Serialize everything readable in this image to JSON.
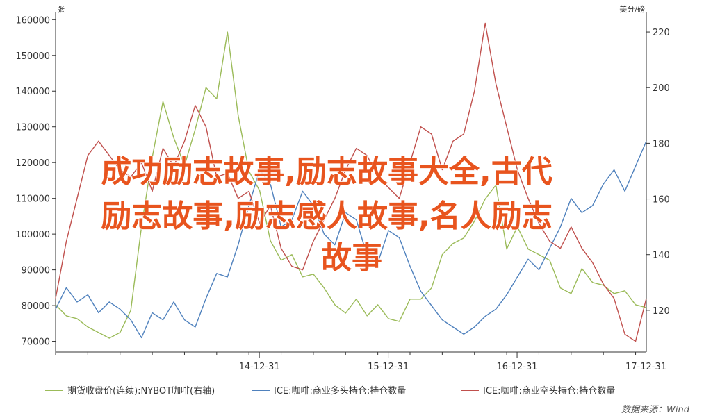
{
  "chart_data": {
    "type": "line",
    "left_axis": {
      "unit": "张",
      "ylim": [
        67000,
        162000
      ],
      "ticks": [
        70000,
        80000,
        90000,
        100000,
        110000,
        120000,
        130000,
        140000,
        150000,
        160000
      ]
    },
    "right_axis": {
      "unit": "美分/磅",
      "ylim": [
        105,
        227
      ],
      "ticks": [
        120,
        140,
        160,
        180,
        200,
        220
      ]
    },
    "x_ticks": [
      "14-12-31",
      "15-12-31",
      "16-12-31",
      "17-12-31"
    ],
    "x_range": [
      "2013-06",
      "2018-01"
    ],
    "grid": false,
    "legend_position": "bottom",
    "series": [
      {
        "name": "期货收盘价(连续):NYBOT咖啡(右轴)",
        "axis": "right",
        "color": "#9bbb59",
        "points": [
          [
            "2013-06",
            122
          ],
          [
            "2013-07",
            118
          ],
          [
            "2013-08",
            117
          ],
          [
            "2013-09",
            114
          ],
          [
            "2013-10",
            112
          ],
          [
            "2013-11",
            110
          ],
          [
            "2013-12",
            112
          ],
          [
            "2014-01",
            120
          ],
          [
            "2014-02",
            150
          ],
          [
            "2014-03",
            175
          ],
          [
            "2014-04",
            195
          ],
          [
            "2014-05",
            182
          ],
          [
            "2014-06",
            172
          ],
          [
            "2014-07",
            185
          ],
          [
            "2014-08",
            200
          ],
          [
            "2014-09",
            196
          ],
          [
            "2014-10",
            220
          ],
          [
            "2014-11",
            190
          ],
          [
            "2014-12",
            170
          ],
          [
            "2015-01",
            163
          ],
          [
            "2015-02",
            145
          ],
          [
            "2015-03",
            138
          ],
          [
            "2015-04",
            140
          ],
          [
            "2015-05",
            132
          ],
          [
            "2015-06",
            133
          ],
          [
            "2015-07",
            128
          ],
          [
            "2015-08",
            122
          ],
          [
            "2015-09",
            119
          ],
          [
            "2015-10",
            124
          ],
          [
            "2015-11",
            118
          ],
          [
            "2015-12",
            122
          ],
          [
            "2016-01",
            117
          ],
          [
            "2016-02",
            116
          ],
          [
            "2016-03",
            124
          ],
          [
            "2016-04",
            124
          ],
          [
            "2016-05",
            128
          ],
          [
            "2016-06",
            140
          ],
          [
            "2016-07",
            144
          ],
          [
            "2016-08",
            146
          ],
          [
            "2016-09",
            152
          ],
          [
            "2016-10",
            160
          ],
          [
            "2016-11",
            165
          ],
          [
            "2016-12",
            142
          ],
          [
            "2017-01",
            150
          ],
          [
            "2017-02",
            142
          ],
          [
            "2017-03",
            140
          ],
          [
            "2017-04",
            138
          ],
          [
            "2017-05",
            128
          ],
          [
            "2017-06",
            126
          ],
          [
            "2017-07",
            135
          ],
          [
            "2017-08",
            130
          ],
          [
            "2017-09",
            129
          ],
          [
            "2017-10",
            126
          ],
          [
            "2017-11",
            127
          ],
          [
            "2017-12",
            122
          ],
          [
            "2018-01",
            121
          ]
        ]
      },
      {
        "name": "ICE:咖啡:商业多头持仓:持仓数量",
        "axis": "left",
        "color": "#4f81bd",
        "points": [
          [
            "2013-06",
            79000
          ],
          [
            "2013-07",
            85000
          ],
          [
            "2013-08",
            81000
          ],
          [
            "2013-09",
            83000
          ],
          [
            "2013-10",
            78000
          ],
          [
            "2013-11",
            81000
          ],
          [
            "2013-12",
            79000
          ],
          [
            "2014-01",
            76000
          ],
          [
            "2014-02",
            71000
          ],
          [
            "2014-03",
            78000
          ],
          [
            "2014-04",
            76000
          ],
          [
            "2014-05",
            81000
          ],
          [
            "2014-06",
            76000
          ],
          [
            "2014-07",
            74000
          ],
          [
            "2014-08",
            82000
          ],
          [
            "2014-09",
            89000
          ],
          [
            "2014-10",
            88000
          ],
          [
            "2014-11",
            97000
          ],
          [
            "2014-12",
            108000
          ],
          [
            "2015-01",
            118000
          ],
          [
            "2015-02",
            114000
          ],
          [
            "2015-03",
            102000
          ],
          [
            "2015-04",
            104000
          ],
          [
            "2015-05",
            112000
          ],
          [
            "2015-06",
            108000
          ],
          [
            "2015-07",
            100000
          ],
          [
            "2015-08",
            97000
          ],
          [
            "2015-09",
            106000
          ],
          [
            "2015-10",
            104000
          ],
          [
            "2015-11",
            94000
          ],
          [
            "2015-12",
            92000
          ],
          [
            "2016-01",
            101000
          ],
          [
            "2016-02",
            99000
          ],
          [
            "2016-03",
            91000
          ],
          [
            "2016-04",
            84000
          ],
          [
            "2016-05",
            80000
          ],
          [
            "2016-06",
            76000
          ],
          [
            "2016-07",
            74000
          ],
          [
            "2016-08",
            72000
          ],
          [
            "2016-09",
            74000
          ],
          [
            "2016-10",
            77000
          ],
          [
            "2016-11",
            79000
          ],
          [
            "2016-12",
            83000
          ],
          [
            "2017-01",
            88000
          ],
          [
            "2017-02",
            93000
          ],
          [
            "2017-03",
            90000
          ],
          [
            "2017-04",
            96000
          ],
          [
            "2017-05",
            102000
          ],
          [
            "2017-06",
            110000
          ],
          [
            "2017-07",
            106000
          ],
          [
            "2017-08",
            108000
          ],
          [
            "2017-09",
            114000
          ],
          [
            "2017-10",
            118000
          ],
          [
            "2017-11",
            112000
          ],
          [
            "2017-12",
            119000
          ],
          [
            "2018-01",
            126000
          ]
        ]
      },
      {
        "name": "ICE:咖啡:商业空头持仓:持仓数量",
        "axis": "left",
        "color": "#c0504d",
        "points": [
          [
            "2013-06",
            82000
          ],
          [
            "2013-07",
            98000
          ],
          [
            "2013-08",
            110000
          ],
          [
            "2013-09",
            122000
          ],
          [
            "2013-10",
            126000
          ],
          [
            "2013-11",
            122000
          ],
          [
            "2013-12",
            118000
          ],
          [
            "2014-01",
            116000
          ],
          [
            "2014-02",
            120000
          ],
          [
            "2014-03",
            112000
          ],
          [
            "2014-04",
            124000
          ],
          [
            "2014-05",
            119000
          ],
          [
            "2014-06",
            126000
          ],
          [
            "2014-07",
            136000
          ],
          [
            "2014-08",
            130000
          ],
          [
            "2014-09",
            116000
          ],
          [
            "2014-10",
            117000
          ],
          [
            "2014-11",
            110000
          ],
          [
            "2014-12",
            112000
          ],
          [
            "2015-01",
            103000
          ],
          [
            "2015-02",
            108000
          ],
          [
            "2015-03",
            96000
          ],
          [
            "2015-04",
            91000
          ],
          [
            "2015-05",
            90000
          ],
          [
            "2015-06",
            98000
          ],
          [
            "2015-07",
            104000
          ],
          [
            "2015-08",
            110000
          ],
          [
            "2015-09",
            118000
          ],
          [
            "2015-10",
            124000
          ],
          [
            "2015-11",
            122000
          ],
          [
            "2015-12",
            116000
          ],
          [
            "2016-01",
            113000
          ],
          [
            "2016-02",
            110000
          ],
          [
            "2016-03",
            120000
          ],
          [
            "2016-04",
            130000
          ],
          [
            "2016-05",
            128000
          ],
          [
            "2016-06",
            118000
          ],
          [
            "2016-07",
            126000
          ],
          [
            "2016-08",
            128000
          ],
          [
            "2016-09",
            140000
          ],
          [
            "2016-10",
            159000
          ],
          [
            "2016-11",
            142000
          ],
          [
            "2016-12",
            130000
          ],
          [
            "2017-01",
            118000
          ],
          [
            "2017-02",
            110000
          ],
          [
            "2017-03",
            103000
          ],
          [
            "2017-04",
            98000
          ],
          [
            "2017-05",
            96000
          ],
          [
            "2017-06",
            102000
          ],
          [
            "2017-07",
            96000
          ],
          [
            "2017-08",
            92000
          ],
          [
            "2017-09",
            86000
          ],
          [
            "2017-10",
            82000
          ],
          [
            "2017-11",
            72000
          ],
          [
            "2017-12",
            70000
          ],
          [
            "2018-01",
            82000
          ]
        ]
      }
    ],
    "source": "数据来源：Wind"
  },
  "overlay_title_lines": [
    "成功励志故事,励志故事大全,古代",
    "励志故事,励志感人故事,名人励志",
    "故事"
  ]
}
